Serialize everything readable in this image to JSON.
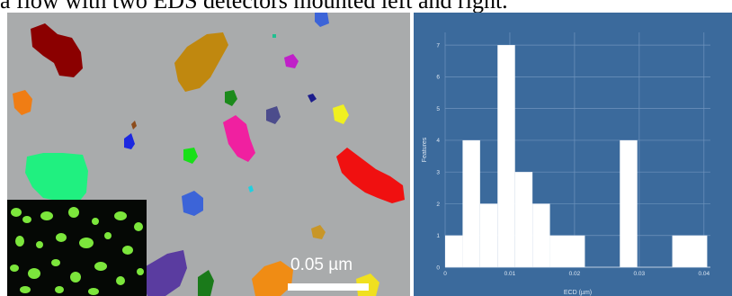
{
  "caption": "a flow with two EDS detectors mounted left and right.",
  "micrograph": {
    "scale_label": "0.05 µm",
    "background_color": "#a9abac",
    "inset_color": "#7ce63c"
  },
  "chart_data": {
    "type": "bar",
    "xlabel": "ECD (µm)",
    "ylabel": "Features",
    "xlim": [
      0,
      0.041
    ],
    "ylim": [
      0,
      7.4
    ],
    "x_ticks": [
      0,
      0.01,
      0.02,
      0.03,
      0.04
    ],
    "x_tick_labels": [
      "0",
      "0.01",
      "0.02",
      "0.03",
      "0.04"
    ],
    "y_ticks": [
      0,
      1,
      2,
      3,
      4,
      5,
      6,
      7
    ],
    "y_tick_labels": [
      "0",
      "1",
      "2",
      "3",
      "4",
      "5",
      "6",
      "7"
    ],
    "grid": true,
    "bar_color": "#ffffff",
    "background_color": "#3b6a9c",
    "bins": [
      {
        "x0": 0.0,
        "x1": 0.0027,
        "count": 1
      },
      {
        "x0": 0.0027,
        "x1": 0.0054,
        "count": 4
      },
      {
        "x0": 0.0054,
        "x1": 0.0081,
        "count": 2
      },
      {
        "x0": 0.0081,
        "x1": 0.0108,
        "count": 7
      },
      {
        "x0": 0.0108,
        "x1": 0.0135,
        "count": 3
      },
      {
        "x0": 0.0135,
        "x1": 0.0162,
        "count": 2
      },
      {
        "x0": 0.0162,
        "x1": 0.0216,
        "count": 1
      },
      {
        "x0": 0.027,
        "x1": 0.0297,
        "count": 4
      },
      {
        "x0": 0.0351,
        "x1": 0.0405,
        "count": 1
      }
    ]
  }
}
